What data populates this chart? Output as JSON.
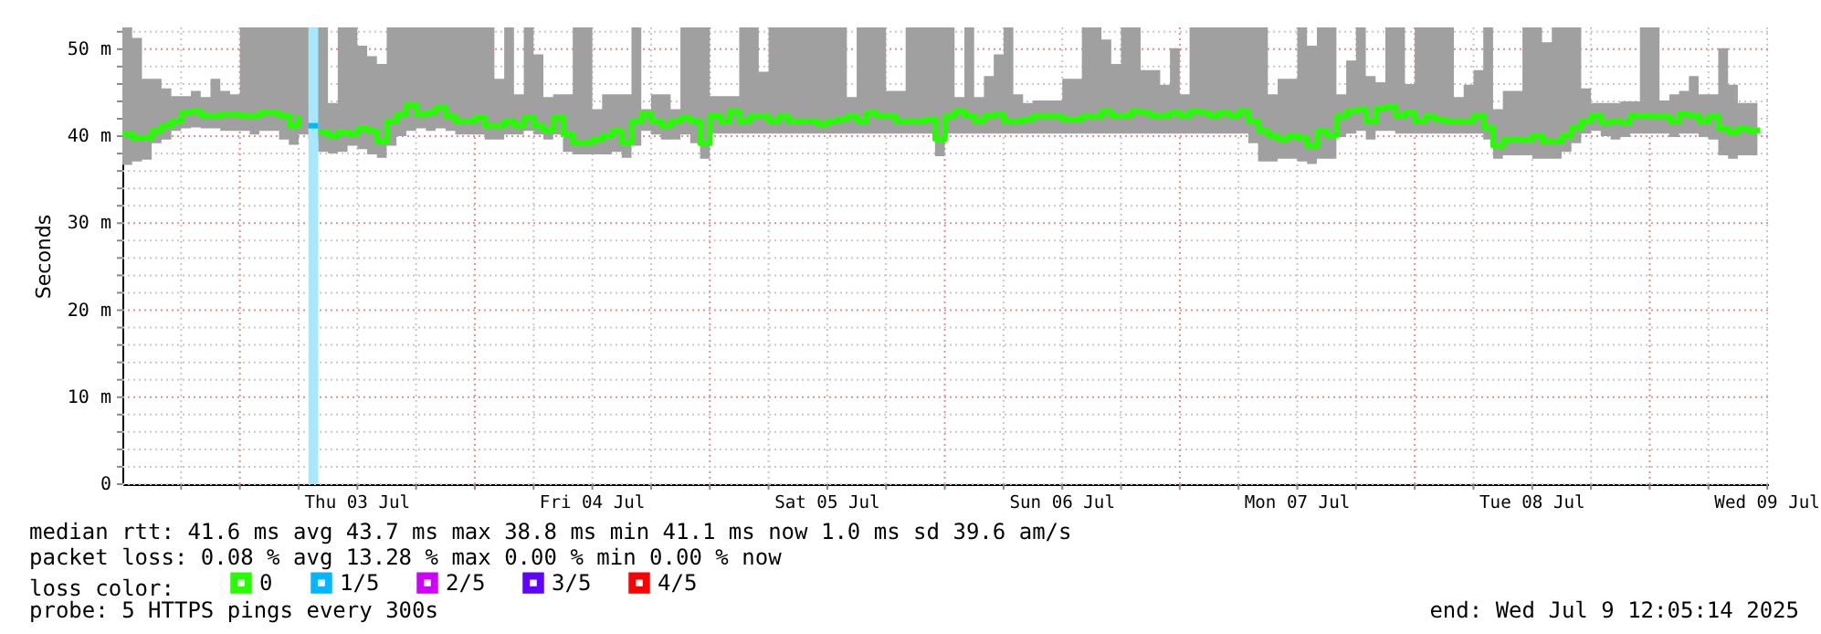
{
  "chart_data": {
    "type": "step",
    "ylabel": "Seconds",
    "legend_title": "loss color:",
    "legend": "bottom",
    "grid": true,
    "xlim": [
      "2025-07-02T12:00",
      "2025-07-09T12:05"
    ],
    "ylim": [
      0,
      52.5
    ],
    "xticks": [
      {
        "value": "2025-07-02T18:00",
        "label": null
      },
      {
        "value": "2025-07-03T00:00",
        "label": null
      },
      {
        "value": "2025-07-03T06:00",
        "label": null
      },
      {
        "value": "2025-07-03T12:00",
        "label": "Thu 03 Jul"
      },
      {
        "value": "2025-07-03T18:00",
        "label": null
      },
      {
        "value": "2025-07-04T00:00",
        "label": null
      },
      {
        "value": "2025-07-04T06:00",
        "label": null
      },
      {
        "value": "2025-07-04T12:00",
        "label": "Fri 04 Jul"
      },
      {
        "value": "2025-07-04T18:00",
        "label": null
      },
      {
        "value": "2025-07-05T00:00",
        "label": null
      },
      {
        "value": "2025-07-05T06:00",
        "label": null
      },
      {
        "value": "2025-07-05T12:00",
        "label": "Sat 05 Jul"
      },
      {
        "value": "2025-07-05T18:00",
        "label": null
      },
      {
        "value": "2025-07-06T00:00",
        "label": null
      },
      {
        "value": "2025-07-06T06:00",
        "label": null
      },
      {
        "value": "2025-07-06T12:00",
        "label": "Sun 06 Jul"
      },
      {
        "value": "2025-07-06T18:00",
        "label": null
      },
      {
        "value": "2025-07-07T00:00",
        "label": null
      },
      {
        "value": "2025-07-07T06:00",
        "label": null
      },
      {
        "value": "2025-07-07T12:00",
        "label": "Mon 07 Jul"
      },
      {
        "value": "2025-07-07T18:00",
        "label": null
      },
      {
        "value": "2025-07-08T00:00",
        "label": null
      },
      {
        "value": "2025-07-08T06:00",
        "label": null
      },
      {
        "value": "2025-07-08T12:00",
        "label": "Tue 08 Jul"
      },
      {
        "value": "2025-07-08T18:00",
        "label": null
      },
      {
        "value": "2025-07-09T00:00",
        "label": null
      },
      {
        "value": "2025-07-09T06:00",
        "label": null
      },
      {
        "value": "2025-07-09T12:00",
        "label": "Wed 09 Jul"
      }
    ],
    "yticks": [
      0,
      {
        "value": 2,
        "label": null
      },
      {
        "value": 4,
        "label": null
      },
      {
        "value": 6,
        "label": null
      },
      {
        "value": 8,
        "label": null
      },
      {
        "value": 10,
        "label": "10 m"
      },
      {
        "value": 12,
        "label": null
      },
      {
        "value": 14,
        "label": null
      },
      {
        "value": 16,
        "label": null
      },
      {
        "value": 18,
        "label": null
      },
      {
        "value": 20,
        "label": "20 m"
      },
      {
        "value": 22,
        "label": null
      },
      {
        "value": 24,
        "label": null
      },
      {
        "value": 26,
        "label": null
      },
      {
        "value": 28,
        "label": null
      },
      {
        "value": 30,
        "label": "30 m"
      },
      {
        "value": 32,
        "label": null
      },
      {
        "value": 34,
        "label": null
      },
      {
        "value": 36,
        "label": null
      },
      {
        "value": 38,
        "label": null
      },
      {
        "value": 40,
        "label": "40 m"
      },
      {
        "value": 42,
        "label": null
      },
      {
        "value": 44,
        "label": null
      },
      {
        "value": 46,
        "label": null
      },
      {
        "value": 48,
        "label": null
      },
      {
        "value": 50,
        "label": "50 m"
      },
      {
        "value": 52,
        "label": null
      }
    ],
    "x": [
      "2025-07-02T12:00",
      "2025-07-02T13:00",
      "2025-07-02T14:00",
      "2025-07-02T15:00",
      "2025-07-02T16:00",
      "2025-07-02T17:00",
      "2025-07-02T18:00",
      "2025-07-02T19:00",
      "2025-07-02T20:00",
      "2025-07-02T21:00",
      "2025-07-02T22:00",
      "2025-07-02T23:00",
      "2025-07-03T00:00",
      "2025-07-03T01:00",
      "2025-07-03T02:00",
      "2025-07-03T03:00",
      "2025-07-03T04:00",
      "2025-07-03T05:00",
      "2025-07-03T06:00",
      "2025-07-03T07:00",
      "2025-07-03T08:00",
      "2025-07-03T09:00",
      "2025-07-03T10:00",
      "2025-07-03T11:00",
      "2025-07-03T12:00",
      "2025-07-03T13:00",
      "2025-07-03T14:00",
      "2025-07-03T15:00",
      "2025-07-03T16:00",
      "2025-07-03T17:00",
      "2025-07-03T18:00",
      "2025-07-03T19:00",
      "2025-07-03T20:00",
      "2025-07-03T21:00",
      "2025-07-03T22:00",
      "2025-07-03T23:00",
      "2025-07-04T00:00",
      "2025-07-04T01:00",
      "2025-07-04T02:00",
      "2025-07-04T03:00",
      "2025-07-04T04:00",
      "2025-07-04T05:00",
      "2025-07-04T06:00",
      "2025-07-04T07:00",
      "2025-07-04T08:00",
      "2025-07-04T09:00",
      "2025-07-04T10:00",
      "2025-07-04T11:00",
      "2025-07-04T12:00",
      "2025-07-04T13:00",
      "2025-07-04T14:00",
      "2025-07-04T15:00",
      "2025-07-04T16:00",
      "2025-07-04T17:00",
      "2025-07-04T18:00",
      "2025-07-04T19:00",
      "2025-07-04T20:00",
      "2025-07-04T21:00",
      "2025-07-04T22:00",
      "2025-07-04T23:00",
      "2025-07-05T00:00",
      "2025-07-05T01:00",
      "2025-07-05T02:00",
      "2025-07-05T03:00",
      "2025-07-05T04:00",
      "2025-07-05T05:00",
      "2025-07-05T06:00",
      "2025-07-05T07:00",
      "2025-07-05T08:00",
      "2025-07-05T09:00",
      "2025-07-05T10:00",
      "2025-07-05T11:00",
      "2025-07-05T12:00",
      "2025-07-05T13:00",
      "2025-07-05T14:00",
      "2025-07-05T15:00",
      "2025-07-05T16:00",
      "2025-07-05T17:00",
      "2025-07-05T18:00",
      "2025-07-05T19:00",
      "2025-07-05T20:00",
      "2025-07-05T21:00",
      "2025-07-05T22:00",
      "2025-07-05T23:00",
      "2025-07-06T00:00",
      "2025-07-06T01:00",
      "2025-07-06T02:00",
      "2025-07-06T03:00",
      "2025-07-06T04:00",
      "2025-07-06T05:00",
      "2025-07-06T06:00",
      "2025-07-06T07:00",
      "2025-07-06T08:00",
      "2025-07-06T09:00",
      "2025-07-06T10:00",
      "2025-07-06T11:00",
      "2025-07-06T12:00",
      "2025-07-06T13:00",
      "2025-07-06T14:00",
      "2025-07-06T15:00",
      "2025-07-06T16:00",
      "2025-07-06T17:00",
      "2025-07-06T18:00",
      "2025-07-06T19:00",
      "2025-07-06T20:00",
      "2025-07-06T21:00",
      "2025-07-06T22:00",
      "2025-07-06T23:00",
      "2025-07-07T00:00",
      "2025-07-07T01:00",
      "2025-07-07T02:00",
      "2025-07-07T03:00",
      "2025-07-07T04:00",
      "2025-07-07T05:00",
      "2025-07-07T06:00",
      "2025-07-07T07:00",
      "2025-07-07T08:00",
      "2025-07-07T09:00",
      "2025-07-07T10:00",
      "2025-07-07T11:00",
      "2025-07-07T12:00",
      "2025-07-07T13:00",
      "2025-07-07T14:00",
      "2025-07-07T15:00",
      "2025-07-07T16:00",
      "2025-07-07T17:00",
      "2025-07-07T18:00",
      "2025-07-07T19:00",
      "2025-07-07T20:00",
      "2025-07-07T21:00",
      "2025-07-07T22:00",
      "2025-07-07T23:00",
      "2025-07-08T00:00",
      "2025-07-08T01:00",
      "2025-07-08T02:00",
      "2025-07-08T03:00",
      "2025-07-08T04:00",
      "2025-07-08T05:00",
      "2025-07-08T06:00",
      "2025-07-08T07:00",
      "2025-07-08T08:00",
      "2025-07-08T09:00",
      "2025-07-08T10:00",
      "2025-07-08T11:00",
      "2025-07-08T12:00",
      "2025-07-08T13:00",
      "2025-07-08T14:00",
      "2025-07-08T15:00",
      "2025-07-08T16:00",
      "2025-07-08T17:00",
      "2025-07-08T18:00",
      "2025-07-08T19:00",
      "2025-07-08T20:00",
      "2025-07-08T21:00",
      "2025-07-08T22:00",
      "2025-07-08T23:00",
      "2025-07-09T00:00",
      "2025-07-09T01:00",
      "2025-07-09T02:00",
      "2025-07-09T03:00",
      "2025-07-09T04:00",
      "2025-07-09T05:00",
      "2025-07-09T06:00",
      "2025-07-09T07:00",
      "2025-07-09T08:00",
      "2025-07-09T09:00",
      "2025-07-09T10:00",
      "2025-07-09T11:00"
    ],
    "series": [
      {
        "name": "0",
        "color": "#26ff00",
        "values": [
          40.3,
          39.8,
          39.8,
          40.6,
          41.2,
          41.8,
          42.7,
          42.9,
          42.4,
          42.4,
          42.5,
          42.5,
          42.4,
          42.4,
          42.7,
          42.7,
          42.4,
          41.2,
          42.4,
          null,
          40.5,
          40.1,
          40.5,
          40.3,
          40.9,
          40.6,
          39.4,
          41.7,
          42.5,
          43.6,
          42.5,
          42.7,
          43.3,
          42.3,
          41.7,
          41.7,
          42.2,
          41.2,
          41.2,
          41.8,
          41.2,
          42.1,
          41.2,
          40.7,
          42.2,
          40.3,
          39.3,
          39.3,
          39.6,
          40.1,
          40.6,
          39.3,
          41.7,
          42.6,
          41.8,
          41.2,
          41.7,
          42.1,
          41.7,
          39.2,
          42.4,
          41.7,
          42.9,
          41.7,
          42.3,
          42.3,
          41.7,
          42.3,
          41.7,
          41.7,
          41.7,
          41.4,
          41.8,
          42.0,
          42.3,
          41.7,
          42.7,
          42.4,
          42.3,
          41.7,
          41.7,
          41.7,
          42.0,
          39.7,
          42.3,
          42.9,
          42.4,
          41.8,
          42.4,
          42.5,
          41.8,
          41.8,
          42.0,
          42.3,
          42.3,
          42.3,
          42.0,
          42.0,
          42.3,
          42.3,
          42.9,
          42.4,
          42.4,
          42.9,
          42.7,
          42.4,
          42.4,
          42.7,
          42.4,
          42.9,
          42.7,
          42.4,
          42.7,
          42.4,
          42.9,
          41.7,
          40.6,
          40.1,
          39.7,
          40.1,
          39.8,
          38.9,
          40.6,
          40.1,
          42.3,
          42.9,
          43.1,
          41.7,
          43.2,
          43.4,
          42.4,
          42.7,
          41.8,
          42.3,
          42.0,
          41.8,
          41.8,
          41.7,
          42.4,
          41.0,
          38.9,
          39.6,
          39.7,
          39.7,
          40.1,
          39.4,
          39.4,
          40.1,
          41.0,
          41.8,
          42.4,
          41.6,
          41.8,
          41.6,
          42.4,
          42.4,
          42.3,
          42.3,
          41.8,
          42.6,
          42.4,
          41.7,
          42.3,
          40.9,
          40.5,
          40.9,
          40.6,
          41.0
        ],
        "lower": [
          36.7,
          37.1,
          37.3,
          39.2,
          39.6,
          40.6,
          40.9,
          41.0,
          40.9,
          40.9,
          40.6,
          40.6,
          40.6,
          40.2,
          40.6,
          40.6,
          39.6,
          39.0,
          40.2,
          39.6,
          38.2,
          38.0,
          38.2,
          38.9,
          38.5,
          37.9,
          37.5,
          38.9,
          40.0,
          40.6,
          40.9,
          40.6,
          40.9,
          40.6,
          40.2,
          40.2,
          40.2,
          39.6,
          39.6,
          40.2,
          40.2,
          40.6,
          40.2,
          39.6,
          40.2,
          38.2,
          37.9,
          37.9,
          37.9,
          37.9,
          38.2,
          37.5,
          38.9,
          40.6,
          40.2,
          39.6,
          39.6,
          40.2,
          39.2,
          37.4,
          40.3,
          40.3,
          40.3,
          40.3,
          40.3,
          40.3,
          40.3,
          40.3,
          40.3,
          40.3,
          40.3,
          40.3,
          40.3,
          40.3,
          40.3,
          40.3,
          40.3,
          40.3,
          40.3,
          40.3,
          40.3,
          40.3,
          40.3,
          37.7,
          40.3,
          40.3,
          40.3,
          40.3,
          40.3,
          40.3,
          40.3,
          40.3,
          40.3,
          40.3,
          40.3,
          40.3,
          40.3,
          40.3,
          40.3,
          40.3,
          40.3,
          40.3,
          40.3,
          40.3,
          40.3,
          40.3,
          40.3,
          40.3,
          40.3,
          40.3,
          40.3,
          40.3,
          40.3,
          40.3,
          40.3,
          39.2,
          37.1,
          37.1,
          37.4,
          37.4,
          37.1,
          36.8,
          37.4,
          37.4,
          39.9,
          40.3,
          40.6,
          39.6,
          40.6,
          40.6,
          40.3,
          40.3,
          40.3,
          40.3,
          40.3,
          40.3,
          40.3,
          40.3,
          40.3,
          39.6,
          37.4,
          37.8,
          37.8,
          37.8,
          37.4,
          37.4,
          37.4,
          38.2,
          39.2,
          40.3,
          40.6,
          40.0,
          39.6,
          39.9,
          40.3,
          40.3,
          40.3,
          40.3,
          39.9,
          40.3,
          40.3,
          39.9,
          39.6,
          37.8,
          37.4,
          37.8,
          37.8,
          37.6
        ],
        "upper": [
          52.5,
          51.3,
          46.6,
          46.6,
          45.5,
          44.6,
          44.6,
          45.2,
          44.5,
          46.6,
          45.2,
          44.8,
          52.5,
          52.5,
          52.5,
          52.5,
          52.5,
          52.5,
          52.5,
          52.5,
          52.5,
          43.8,
          52.5,
          52.5,
          50.4,
          49.2,
          48.3,
          52.5,
          52.5,
          52.5,
          52.5,
          52.5,
          52.5,
          52.5,
          52.5,
          52.5,
          52.5,
          52.5,
          46.6,
          52.5,
          44.8,
          52.5,
          49.4,
          44.5,
          44.8,
          44.8,
          52.5,
          52.5,
          43.1,
          44.8,
          44.8,
          44.8,
          52.5,
          43.1,
          44.8,
          44.8,
          43.1,
          52.5,
          52.5,
          52.5,
          44.6,
          44.6,
          44.6,
          52.5,
          52.5,
          47.4,
          52.5,
          52.5,
          52.5,
          52.5,
          52.5,
          52.5,
          52.5,
          52.5,
          44.5,
          52.5,
          52.5,
          52.5,
          45.2,
          45.2,
          52.5,
          52.5,
          52.5,
          52.5,
          52.5,
          44.5,
          52.5,
          44.5,
          46.9,
          49.4,
          52.5,
          44.8,
          43.8,
          44.1,
          44.1,
          44.1,
          46.6,
          46.6,
          52.5,
          52.5,
          51.1,
          48.3,
          52.5,
          52.5,
          47.6,
          47.6,
          45.9,
          50.1,
          44.8,
          52.5,
          52.5,
          52.5,
          52.5,
          52.5,
          52.5,
          52.5,
          52.5,
          44.8,
          46.6,
          46.6,
          52.5,
          50.4,
          52.5,
          52.5,
          44.8,
          48.7,
          52.5,
          46.9,
          46.2,
          52.5,
          52.5,
          46.0,
          52.5,
          52.5,
          52.5,
          52.5,
          44.5,
          45.9,
          47.6,
          52.5,
          43.1,
          45.2,
          45.2,
          52.5,
          52.5,
          50.8,
          52.5,
          52.5,
          52.5,
          45.5,
          43.8,
          43.8,
          43.8,
          44.0,
          44.0,
          52.5,
          52.5,
          44.1,
          44.8,
          45.2,
          46.9,
          44.8,
          44.8,
          50.1,
          45.9,
          43.8,
          43.8,
          52.5
        ]
      },
      {
        "name": "1/5",
        "color": "#00b8ff",
        "x": [
          "2025-07-03T07:00",
          "2025-07-03T08:00"
        ],
        "values": [
          41.2,
          41.2
        ]
      },
      {
        "name": "2/5",
        "color": "#d000ff",
        "values": [
          null,
          null,
          null,
          null,
          null,
          null,
          null,
          null,
          null,
          null,
          null,
          null,
          null,
          null,
          null,
          null,
          null,
          null,
          null,
          null,
          null,
          null,
          null,
          null,
          null,
          null,
          null,
          null,
          null,
          null,
          null,
          null,
          null,
          null,
          null,
          null,
          null,
          null,
          null,
          null,
          null,
          null,
          null,
          null,
          null,
          null,
          null,
          null,
          null,
          null,
          null,
          null,
          null,
          null,
          null,
          null,
          null,
          null,
          null,
          null,
          null,
          null,
          null,
          null,
          null,
          null,
          null,
          null,
          null,
          null,
          null,
          null,
          null,
          null,
          null,
          null,
          null,
          null,
          null,
          null,
          null,
          null,
          null,
          null,
          null,
          null,
          null,
          null,
          null,
          null,
          null,
          null,
          null,
          null,
          null,
          null,
          null,
          null,
          null,
          null,
          null,
          null,
          null,
          null,
          null,
          null,
          null,
          null,
          null,
          null,
          null,
          null,
          null,
          null,
          null,
          null,
          null,
          null,
          null,
          null,
          null,
          null,
          null,
          null,
          null,
          null,
          null,
          null,
          null,
          null,
          null,
          null,
          null,
          null,
          null,
          null,
          null,
          null,
          null,
          null,
          null,
          null,
          null,
          null,
          null,
          null,
          null,
          null,
          null,
          null,
          null,
          null,
          null,
          null,
          null,
          null,
          null,
          null,
          null,
          null,
          null,
          null,
          null,
          null,
          null,
          null,
          null,
          null
        ]
      },
      {
        "name": "3/5",
        "color": "#6000ff",
        "values": [
          null,
          null,
          null,
          null,
          null,
          null,
          null,
          null,
          null,
          null,
          null,
          null,
          null,
          null,
          null,
          null,
          null,
          null,
          null,
          null,
          null,
          null,
          null,
          null,
          null,
          null,
          null,
          null,
          null,
          null,
          null,
          null,
          null,
          null,
          null,
          null,
          null,
          null,
          null,
          null,
          null,
          null,
          null,
          null,
          null,
          null,
          null,
          null,
          null,
          null,
          null,
          null,
          null,
          null,
          null,
          null,
          null,
          null,
          null,
          null,
          null,
          null,
          null,
          null,
          null,
          null,
          null,
          null,
          null,
          null,
          null,
          null,
          null,
          null,
          null,
          null,
          null,
          null,
          null,
          null,
          null,
          null,
          null,
          null,
          null,
          null,
          null,
          null,
          null,
          null,
          null,
          null,
          null,
          null,
          null,
          null,
          null,
          null,
          null,
          null,
          null,
          null,
          null,
          null,
          null,
          null,
          null,
          null,
          null,
          null,
          null,
          null,
          null,
          null,
          null,
          null,
          null,
          null,
          null,
          null,
          null,
          null,
          null,
          null,
          null,
          null,
          null,
          null,
          null,
          null,
          null,
          null,
          null,
          null,
          null,
          null,
          null,
          null,
          null,
          null,
          null,
          null,
          null,
          null,
          null,
          null,
          null,
          null,
          null,
          null,
          null,
          null,
          null,
          null,
          null,
          null,
          null,
          null,
          null,
          null,
          null,
          null,
          null,
          null,
          null,
          null,
          null,
          null
        ]
      },
      {
        "name": "4/5",
        "color": "#ff0000",
        "values": [
          null,
          null,
          null,
          null,
          null,
          null,
          null,
          null,
          null,
          null,
          null,
          null,
          null,
          null,
          null,
          null,
          null,
          null,
          null,
          null,
          null,
          null,
          null,
          null,
          null,
          null,
          null,
          null,
          null,
          null,
          null,
          null,
          null,
          null,
          null,
          null,
          null,
          null,
          null,
          null,
          null,
          null,
          null,
          null,
          null,
          null,
          null,
          null,
          null,
          null,
          null,
          null,
          null,
          null,
          null,
          null,
          null,
          null,
          null,
          null,
          null,
          null,
          null,
          null,
          null,
          null,
          null,
          null,
          null,
          null,
          null,
          null,
          null,
          null,
          null,
          null,
          null,
          null,
          null,
          null,
          null,
          null,
          null,
          null,
          null,
          null,
          null,
          null,
          null,
          null,
          null,
          null,
          null,
          null,
          null,
          null,
          null,
          null,
          null,
          null,
          null,
          null,
          null,
          null,
          null,
          null,
          null,
          null,
          null,
          null,
          null,
          null,
          null,
          null,
          null,
          null,
          null,
          null,
          null,
          null,
          null,
          null,
          null,
          null,
          null,
          null,
          null,
          null,
          null,
          null,
          null,
          null,
          null,
          null,
          null,
          null,
          null,
          null,
          null,
          null,
          null,
          null,
          null,
          null,
          null,
          null,
          null,
          null,
          null,
          null,
          null,
          null,
          null,
          null,
          null,
          null,
          null,
          null,
          null,
          null,
          null,
          null,
          null,
          null,
          null,
          null,
          null,
          null
        ]
      }
    ],
    "bands": [
      {
        "axis": "x",
        "from": "2025-07-03T07:00",
        "to": "2025-07-03T08:00",
        "color": "#a8e8ff"
      }
    ],
    "annotations": [
      "median rtt:  41.6 ms avg  43.7 ms max  38.8 ms min  41.1 ms now  1.0 ms sd  39.6   am/s",
      "packet loss: 0.08 % avg  13.28 % max  0.00 % min  0.00 % now",
      "probe:       5 HTTPS pings every 300s",
      "end: Wed Jul  9 12:05:14 2025"
    ]
  }
}
